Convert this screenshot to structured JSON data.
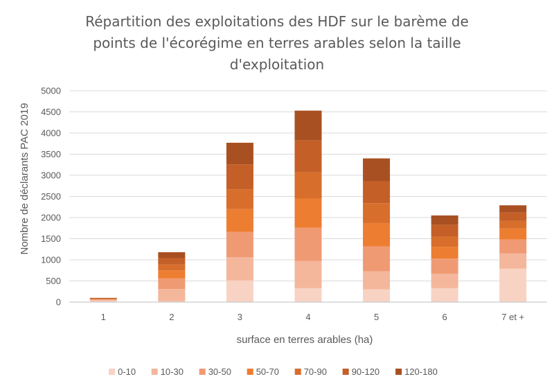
{
  "chart_data": {
    "type": "bar",
    "stacked": true,
    "title_lines": [
      "Répartition des exploitations des HDF sur le barème de",
      "points de l'écorégime en terres arables selon la taille",
      "d'exploitation"
    ],
    "xlabel": "surface en terres arables (ha)",
    "ylabel": "Nombre de déclarants PAC 2019",
    "ylim": [
      0,
      5000
    ],
    "yticks": [
      0,
      500,
      1000,
      1500,
      2000,
      2500,
      3000,
      3500,
      4000,
      4500,
      5000
    ],
    "grid": true,
    "legend_position": "bottom",
    "categories": [
      "1",
      "2",
      "3",
      "4",
      "5",
      "6",
      "7 et +"
    ],
    "series": [
      {
        "name": "0-10",
        "color": "#f8d3c4",
        "values": [
          30,
          20,
          510,
          330,
          300,
          330,
          790
        ]
      },
      {
        "name": "10-30",
        "color": "#f4b79c",
        "values": [
          20,
          290,
          550,
          640,
          430,
          340,
          360
        ]
      },
      {
        "name": "30-50",
        "color": "#f09a74",
        "values": [
          10,
          250,
          600,
          790,
          590,
          360,
          330
        ]
      },
      {
        "name": "50-70",
        "color": "#ed7d31",
        "values": [
          10,
          190,
          540,
          690,
          550,
          280,
          260
        ]
      },
      {
        "name": "70-90",
        "color": "#d86e2b",
        "values": [
          10,
          140,
          470,
          620,
          470,
          240,
          180
        ]
      },
      {
        "name": "90-120",
        "color": "#c45f27",
        "values": [
          10,
          150,
          590,
          760,
          520,
          280,
          200
        ]
      },
      {
        "name": "120-180",
        "color": "#a95022",
        "values": [
          10,
          140,
          510,
          700,
          540,
          220,
          170
        ]
      }
    ]
  }
}
